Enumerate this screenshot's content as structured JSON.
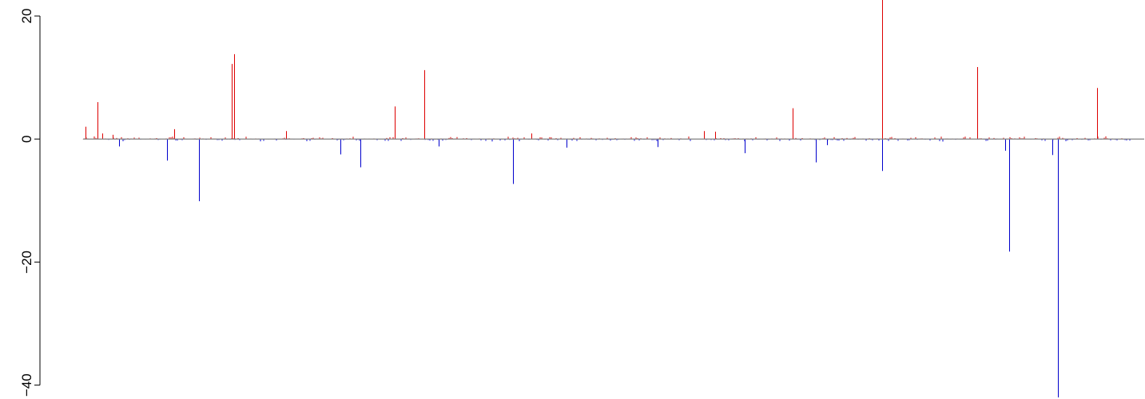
{
  "colors": {
    "positive": "#dd0000",
    "negative": "#0000cc",
    "zero_line": "#808080",
    "axis": "#000000"
  },
  "chart_data": {
    "type": "bar",
    "title": "",
    "xlabel": "",
    "ylabel": "",
    "ylim": [
      -42,
      22.6
    ],
    "xlim": [
      0,
      1000
    ],
    "y_ticks": [
      20,
      0,
      -20,
      -40
    ],
    "y_tick_labels": [
      "20",
      "0",
      "−20",
      "−40"
    ],
    "grid": false,
    "legend": "none",
    "series": [
      {
        "sign": "positive",
        "x": [
          2,
          14,
          18,
          28,
          87,
          142,
          144,
          194,
          298,
          326,
          428,
          593,
          604,
          678,
          763,
          854,
          969
        ],
        "values": [
          2.0,
          6.0,
          0.9,
          0.7,
          1.6,
          12.2,
          13.8,
          1.3,
          5.3,
          11.2,
          0.9,
          1.3,
          1.2,
          5.0,
          22.6,
          11.7,
          8.3
        ]
      },
      {
        "sign": "negative",
        "x": [
          34,
          80,
          111,
          246,
          265,
          340,
          411,
          462,
          549,
          632,
          700,
          711,
          763,
          881,
          885,
          926,
          931
        ],
        "values": [
          -1.2,
          -3.5,
          -10.1,
          -2.5,
          -4.6,
          -1.2,
          -7.3,
          -1.4,
          -1.3,
          -2.3,
          -3.8,
          -1.0,
          -5.2,
          -1.9,
          -18.3,
          -2.6,
          -42
        ]
      }
    ]
  }
}
